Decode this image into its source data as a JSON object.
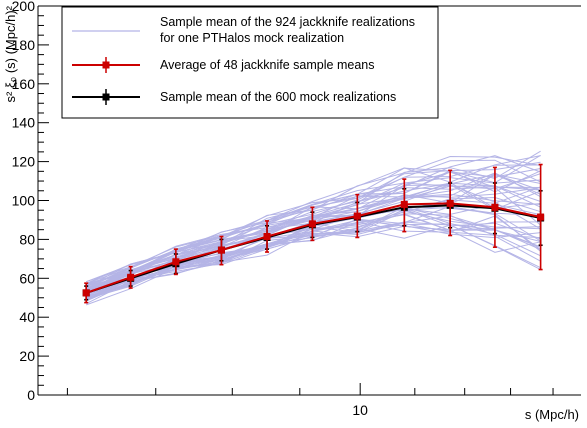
{
  "chart_data": {
    "type": "line",
    "xlabel": "s   (Mpc/h)",
    "ylabel": "s²  ξ₀ (s)   (Mpc/h)²",
    "xscale": "log",
    "xlim": [
      5.7,
      14.7
    ],
    "ylim": [
      0,
      200
    ],
    "x_tick_labels": [
      "10"
    ],
    "y_tick_labels": [
      "0",
      "20",
      "40",
      "60",
      "80",
      "100",
      "120",
      "140",
      "160",
      "180",
      "200"
    ],
    "legend_position": "top-left",
    "grid": false,
    "x": [
      6.2,
      6.7,
      7.25,
      7.85,
      8.5,
      9.2,
      9.95,
      10.8,
      11.7,
      12.65,
      13.7
    ],
    "series": [
      {
        "name": "Sample mean of the 924 jackknife realizations\nfor one PTHalos mock realization",
        "kind": "jackknife-bundle",
        "color": "#b4b4e6",
        "count": 48
      },
      {
        "name": "Average of 48 jackknife sample means",
        "color": "#cc0000",
        "marker": "square",
        "values": [
          52.5,
          60.5,
          68.5,
          74.5,
          81.5,
          88,
          92,
          98,
          98.5,
          96.5,
          91.5
        ],
        "err_low": [
          47.5,
          55,
          62,
          67,
          73.5,
          79.5,
          81,
          84,
          82,
          76,
          64.5
        ],
        "err_high": [
          57.5,
          66,
          75,
          81.5,
          89.5,
          96.5,
          103,
          111,
          115.5,
          117,
          118.5
        ]
      },
      {
        "name": "Sample mean of the 600 mock realizations",
        "color": "#000000",
        "marker": "square",
        "values": [
          52.5,
          60,
          67.5,
          74.5,
          81,
          87.5,
          91.5,
          96.5,
          97.5,
          96,
          91
        ],
        "err_low": [
          49,
          56,
          62.5,
          69,
          75,
          81,
          84,
          87,
          86,
          83,
          77
        ],
        "err_high": [
          56,
          64,
          72.5,
          80,
          87,
          94,
          99,
          106,
          109,
          109,
          105
        ]
      }
    ]
  }
}
